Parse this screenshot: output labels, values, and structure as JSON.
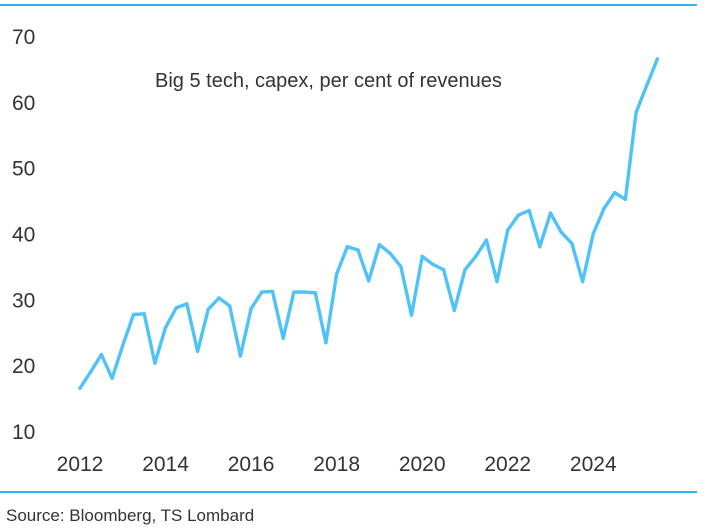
{
  "chart_data": {
    "type": "line",
    "title": "Big 5 tech, capex, per cent of revenues",
    "xlabel": "",
    "ylabel": "",
    "xlim": [
      2012,
      2025.7
    ],
    "ylim": [
      10,
      70
    ],
    "x_ticks": [
      "2012",
      "2014",
      "2016",
      "2018",
      "2020",
      "2022",
      "2024"
    ],
    "y_ticks": [
      "10",
      "20",
      "30",
      "40",
      "50",
      "60",
      "70"
    ],
    "grid": false,
    "line_color": "#4fc3f7",
    "series": [
      {
        "x": [
          2012.0,
          2012.25,
          2012.5,
          2012.75,
          2013.0,
          2013.25,
          2013.5,
          2013.75,
          2014.0,
          2014.25,
          2014.5,
          2014.75,
          2015.0,
          2015.25,
          2015.5,
          2015.75,
          2016.0,
          2016.25,
          2016.5,
          2016.75,
          2017.0,
          2017.25,
          2017.5,
          2017.75,
          2018.0,
          2018.25,
          2018.5,
          2018.75,
          2019.0,
          2019.25,
          2019.5,
          2019.75,
          2020.0,
          2020.25,
          2020.5,
          2020.75,
          2021.0,
          2021.25,
          2021.5,
          2021.75,
          2022.0,
          2022.25,
          2022.5,
          2022.75,
          2023.0,
          2023.25,
          2023.5,
          2023.75,
          2024.0,
          2024.25,
          2024.5,
          2024.75,
          2025.0,
          2025.25,
          2025.5
        ],
        "y": [
          16.5,
          19.0,
          21.6,
          18.0,
          23.0,
          27.7,
          27.8,
          20.3,
          25.7,
          28.7,
          29.3,
          22.1,
          28.5,
          30.2,
          29.0,
          21.4,
          28.6,
          31.1,
          31.2,
          24.1,
          31.1,
          31.1,
          31.0,
          23.4,
          33.8,
          38.0,
          37.5,
          32.8,
          38.3,
          37.0,
          35.0,
          27.6,
          36.5,
          35.3,
          34.5,
          28.3,
          34.5,
          36.5,
          39.0,
          32.7,
          40.5,
          42.8,
          43.5,
          38.0,
          43.1,
          40.2,
          38.5,
          32.7,
          40.0,
          43.8,
          46.2,
          45.2,
          58.4,
          62.5,
          66.5
        ]
      }
    ]
  },
  "source": "Source: Bloomberg, TS Lombard"
}
